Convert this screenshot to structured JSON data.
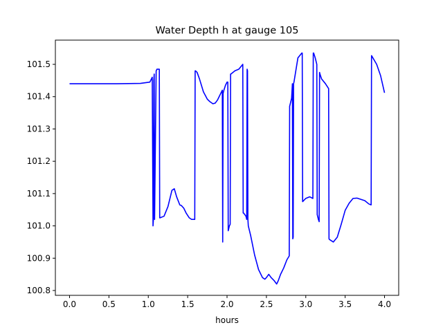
{
  "chart_data": {
    "type": "line",
    "title": "Water Depth h at gauge 105",
    "xlabel": "hours",
    "ylabel": "",
    "xlim": [
      -0.18,
      4.18
    ],
    "ylim": [
      100.785,
      101.575
    ],
    "x_ticks": [
      0.0,
      0.5,
      1.0,
      1.5,
      2.0,
      2.5,
      3.0,
      3.5,
      4.0
    ],
    "x_tick_labels": [
      "0.0",
      "0.5",
      "1.0",
      "1.5",
      "2.0",
      "2.5",
      "3.0",
      "3.5",
      "4.0"
    ],
    "y_ticks": [
      100.8,
      100.9,
      101.0,
      101.1,
      101.2,
      101.3,
      101.4,
      101.5
    ],
    "y_tick_labels": [
      "100.8",
      "100.9",
      "101.0",
      "101.1",
      "101.2",
      "101.3",
      "101.4",
      "101.5"
    ],
    "grid": false,
    "series": [
      {
        "color": "#0000ff",
        "x": [
          0.0,
          0.3,
          0.6,
          0.9,
          1.02,
          1.05,
          1.06,
          1.065,
          1.07,
          1.075,
          1.08,
          1.1,
          1.105,
          1.11,
          1.12,
          1.14,
          1.145,
          1.15,
          1.2,
          1.25,
          1.28,
          1.3,
          1.33,
          1.36,
          1.4,
          1.42,
          1.45,
          1.48,
          1.52,
          1.55,
          1.58,
          1.59,
          1.595,
          1.6,
          1.62,
          1.65,
          1.7,
          1.75,
          1.78,
          1.82,
          1.85,
          1.88,
          1.91,
          1.93,
          1.94,
          1.945,
          1.95,
          1.96,
          1.98,
          2.0,
          2.01,
          2.015,
          2.02,
          2.03,
          2.04,
          2.045,
          2.05,
          2.1,
          2.15,
          2.2,
          2.205,
          2.21,
          2.24,
          2.25,
          2.255,
          2.26,
          2.265,
          2.27,
          2.3,
          2.35,
          2.4,
          2.45,
          2.48,
          2.5,
          2.53,
          2.56,
          2.6,
          2.63,
          2.65,
          2.68,
          2.72,
          2.76,
          2.79,
          2.795,
          2.8,
          2.82,
          2.83,
          2.835,
          2.84,
          2.845,
          2.85,
          2.9,
          2.95,
          2.955,
          2.96,
          3.0,
          3.05,
          3.09,
          3.095,
          3.1,
          3.12,
          3.14,
          3.145,
          3.15,
          3.16,
          3.17,
          3.175,
          3.18,
          3.2,
          3.25,
          3.29,
          3.295,
          3.3,
          3.35,
          3.4,
          3.45,
          3.5,
          3.55,
          3.6,
          3.65,
          3.7,
          3.75,
          3.8,
          3.83,
          3.835,
          3.84,
          3.9,
          3.95,
          4.0
        ],
        "y": [
          101.44,
          101.44,
          101.44,
          101.441,
          101.445,
          101.46,
          101.0,
          101.02,
          101.45,
          101.47,
          101.02,
          101.48,
          101.482,
          101.485,
          101.485,
          101.485,
          101.025,
          101.025,
          101.03,
          101.06,
          101.09,
          101.11,
          101.115,
          101.09,
          101.065,
          101.063,
          101.055,
          101.04,
          101.025,
          101.02,
          101.02,
          101.02,
          101.48,
          101.48,
          101.475,
          101.455,
          101.415,
          101.392,
          101.385,
          101.378,
          101.38,
          101.39,
          101.405,
          101.415,
          101.42,
          100.95,
          101.41,
          101.42,
          101.435,
          101.445,
          101.445,
          100.985,
          100.99,
          101.0,
          101.005,
          101.47,
          101.47,
          101.48,
          101.485,
          101.5,
          101.04,
          101.04,
          101.03,
          101.02,
          101.485,
          101.48,
          101.02,
          101.0,
          100.97,
          100.91,
          100.865,
          100.84,
          100.835,
          100.84,
          100.85,
          100.84,
          100.83,
          100.82,
          100.83,
          100.85,
          100.87,
          100.895,
          100.907,
          101.37,
          101.375,
          101.395,
          101.44,
          100.96,
          100.965,
          101.44,
          101.445,
          101.52,
          101.535,
          101.535,
          101.075,
          101.085,
          101.09,
          101.085,
          101.535,
          101.535,
          101.52,
          101.5,
          101.035,
          101.03,
          101.02,
          101.013,
          101.475,
          101.47,
          101.455,
          101.44,
          101.425,
          100.96,
          100.958,
          100.95,
          100.965,
          101.005,
          101.048,
          101.07,
          101.085,
          101.086,
          101.082,
          101.078,
          101.068,
          101.065,
          101.527,
          101.525,
          101.5,
          101.465,
          101.412
        ]
      }
    ]
  },
  "colors": {
    "line": "#0000ff",
    "axes": "#000000",
    "background": "#ffffff"
  }
}
